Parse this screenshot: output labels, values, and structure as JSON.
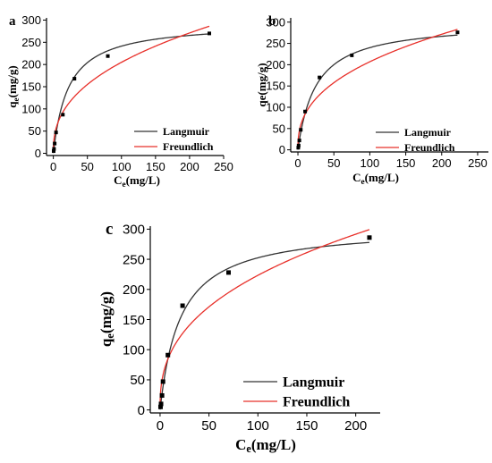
{
  "chart_data": [
    {
      "type": "scatter",
      "panel": "a",
      "xlabel_main": "C",
      "xlabel_sub": "e",
      "xlabel_tail": "(mg/L)",
      "ylabel_main": "q",
      "ylabel_sub": "e",
      "ylabel_tail": "(mg/g)",
      "xlim": [
        -10,
        250
      ],
      "ylim": [
        -5,
        305
      ],
      "xticks": [
        "0",
        "50",
        "100",
        "150",
        "200",
        "250"
      ],
      "yticks": [
        "0",
        "50",
        "100",
        "150",
        "200",
        "250",
        "300"
      ],
      "points": {
        "x": [
          0.5,
          1,
          2,
          4,
          14,
          31,
          80,
          229
        ],
        "y": [
          5,
          10,
          22,
          47,
          87,
          168,
          219,
          270
        ]
      },
      "series": [
        {
          "name": "Langmuir",
          "color": "#333333",
          "model": "langmuir",
          "qm": 295,
          "k": 0.045
        },
        {
          "name": "Freundlich",
          "color": "#e8302a",
          "model": "freundlich",
          "kf": 32,
          "n": 2.48
        }
      ],
      "legend_position": "bottom-right"
    },
    {
      "type": "scatter",
      "panel": "b",
      "xlabel_main": "C",
      "xlabel_sub": "e",
      "xlabel_tail": "(mg/L)",
      "ylabel_main": "qe(mg/g)",
      "ylabel_sub": "",
      "ylabel_tail": "",
      "xlim": [
        -10,
        265
      ],
      "ylim": [
        -5,
        310
      ],
      "xticks": [
        "0",
        "50",
        "100",
        "150",
        "200",
        "250"
      ],
      "yticks": [
        "0",
        "50",
        "100",
        "150",
        "200",
        "250",
        "300"
      ],
      "points": {
        "x": [
          0.5,
          1,
          2,
          4,
          10,
          30,
          75,
          222
        ],
        "y": [
          5,
          10,
          22,
          47,
          90,
          170,
          222,
          276
        ]
      },
      "series": [
        {
          "name": "Langmuir",
          "color": "#333333",
          "model": "langmuir",
          "qm": 300,
          "k": 0.04
        },
        {
          "name": "Freundlich",
          "color": "#e8302a",
          "model": "freundlich",
          "kf": 34,
          "n": 2.55
        }
      ],
      "legend_position": "bottom-right"
    },
    {
      "type": "scatter",
      "panel": "c",
      "xlabel_main": "C",
      "xlabel_sub": "e",
      "xlabel_tail": "(mg/L)",
      "ylabel_main": "q",
      "ylabel_sub": "e",
      "ylabel_tail": "(mg/g)",
      "xlim": [
        -10,
        225
      ],
      "ylim": [
        -5,
        305
      ],
      "xticks": [
        "0",
        "50",
        "100",
        "150",
        "200"
      ],
      "yticks": [
        "0",
        "50",
        "100",
        "150",
        "200",
        "250",
        "300"
      ],
      "points": {
        "x": [
          0.5,
          1,
          2,
          3,
          8,
          23,
          70,
          214
        ],
        "y": [
          5,
          10,
          24,
          47,
          91,
          173,
          228,
          286
        ]
      },
      "series": [
        {
          "name": "Langmuir",
          "color": "#333333",
          "model": "langmuir",
          "qm": 305,
          "k": 0.048
        },
        {
          "name": "Freundlich",
          "color": "#e8302a",
          "model": "freundlich",
          "kf": 38,
          "n": 2.6
        }
      ],
      "legend_position": "bottom-right"
    }
  ]
}
